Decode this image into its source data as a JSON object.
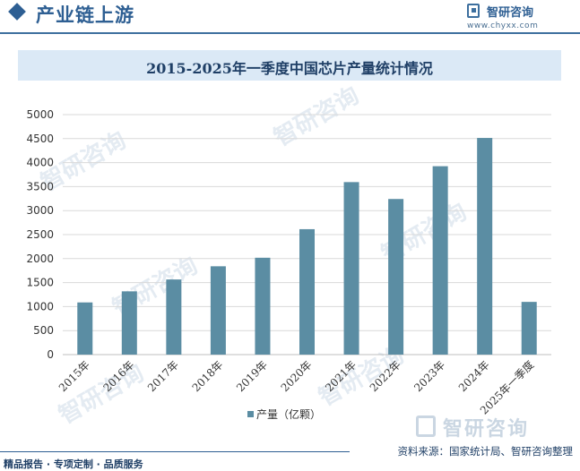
{
  "header": {
    "section_title": "产业链上游"
  },
  "logo": {
    "name": "智研咨询",
    "url": "www.chyxx.com"
  },
  "watermark": "智研咨询",
  "footer": {
    "slogan": "精品报告 · 专项定制 · 品质服务",
    "source": "资料来源：国家统计局、智研咨询整理"
  },
  "colors": {
    "bar": "#5b8da3",
    "title_band": "#dbe9f6",
    "accent": "#2e5f93"
  },
  "chart_data": {
    "type": "bar",
    "title": "2015-2025年一季度中国芯片产量统计情况",
    "categories": [
      "2015年",
      "2016年",
      "2017年",
      "2018年",
      "2019年",
      "2020年",
      "2021年",
      "2022年",
      "2023年",
      "2024年",
      "2025年一季度"
    ],
    "series": [
      {
        "name": "产量（亿颗）",
        "values": [
          1087,
          1318,
          1565,
          1840,
          2018,
          2613,
          3594,
          3242,
          3925,
          4514,
          1098
        ]
      }
    ],
    "yticks": [
      "0",
      "500",
      "1000",
      "1500",
      "2000",
      "2500",
      "3000",
      "3500",
      "4000",
      "4500",
      "5000"
    ],
    "ylim": [
      0,
      5000
    ],
    "grid": true,
    "legend_position": "bottom"
  }
}
